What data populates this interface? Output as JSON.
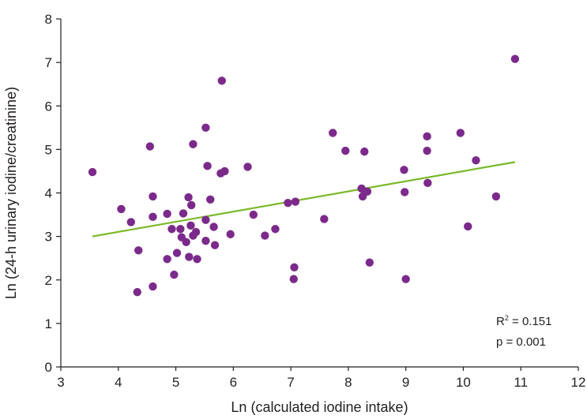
{
  "chart_data": {
    "type": "scatter",
    "title": "",
    "xlabel": "Ln (calculated iodine intake)",
    "ylabel": "Ln (24-h urinary iodine/creatinine)",
    "xlim": [
      3,
      12
    ],
    "ylim": [
      0,
      8
    ],
    "xticks": [
      "3",
      "4",
      "5",
      "6",
      "7",
      "8",
      "9",
      "10",
      "11",
      "12"
    ],
    "yticks": [
      "0",
      "1",
      "2",
      "3",
      "4",
      "5",
      "6",
      "7",
      "8"
    ],
    "grid": false,
    "colors": {
      "points": "#7b2a8b",
      "trendline": "#7ab929",
      "axis": "#231f20"
    },
    "points": [
      [
        3.55,
        4.48
      ],
      [
        4.05,
        3.63
      ],
      [
        4.22,
        3.33
      ],
      [
        4.35,
        2.68
      ],
      [
        4.33,
        1.72
      ],
      [
        4.55,
        5.07
      ],
      [
        4.6,
        3.92
      ],
      [
        4.6,
        3.45
      ],
      [
        4.6,
        1.85
      ],
      [
        4.85,
        3.52
      ],
      [
        4.85,
        2.48
      ],
      [
        4.93,
        3.17
      ],
      [
        4.97,
        2.12
      ],
      [
        5.02,
        2.62
      ],
      [
        5.08,
        3.17
      ],
      [
        5.1,
        2.98
      ],
      [
        5.13,
        3.53
      ],
      [
        5.18,
        2.87
      ],
      [
        5.22,
        3.9
      ],
      [
        5.23,
        2.53
      ],
      [
        5.26,
        3.25
      ],
      [
        5.27,
        3.72
      ],
      [
        5.3,
        5.12
      ],
      [
        5.3,
        3.02
      ],
      [
        5.35,
        3.1
      ],
      [
        5.37,
        2.48
      ],
      [
        5.52,
        5.5
      ],
      [
        5.52,
        3.38
      ],
      [
        5.52,
        2.9
      ],
      [
        5.55,
        4.62
      ],
      [
        5.6,
        3.85
      ],
      [
        5.66,
        3.22
      ],
      [
        5.68,
        2.8
      ],
      [
        5.78,
        4.45
      ],
      [
        5.8,
        6.58
      ],
      [
        5.85,
        4.5
      ],
      [
        5.95,
        3.05
      ],
      [
        6.25,
        4.6
      ],
      [
        6.35,
        3.5
      ],
      [
        6.55,
        3.02
      ],
      [
        6.73,
        3.17
      ],
      [
        6.95,
        3.77
      ],
      [
        7.05,
        2.02
      ],
      [
        7.06,
        2.29
      ],
      [
        7.08,
        3.8
      ],
      [
        7.58,
        3.4
      ],
      [
        7.73,
        5.38
      ],
      [
        7.95,
        4.97
      ],
      [
        8.23,
        4.1
      ],
      [
        8.25,
        3.92
      ],
      [
        8.28,
        4.95
      ],
      [
        8.33,
        4.03
      ],
      [
        8.37,
        2.4
      ],
      [
        8.97,
        4.53
      ],
      [
        8.98,
        4.02
      ],
      [
        9.0,
        2.02
      ],
      [
        9.37,
        5.3
      ],
      [
        9.37,
        4.97
      ],
      [
        9.38,
        4.23
      ],
      [
        9.95,
        5.38
      ],
      [
        10.08,
        3.23
      ],
      [
        10.22,
        4.75
      ],
      [
        10.57,
        3.92
      ],
      [
        10.9,
        7.08
      ]
    ],
    "trendline": {
      "x": [
        3.55,
        10.9
      ],
      "y": [
        3.0,
        4.71
      ]
    },
    "annotations": {
      "r2_label": "R",
      "r2_sup": "2",
      "r2_value": " = 0.151",
      "p_text": "p = 0.001"
    }
  }
}
